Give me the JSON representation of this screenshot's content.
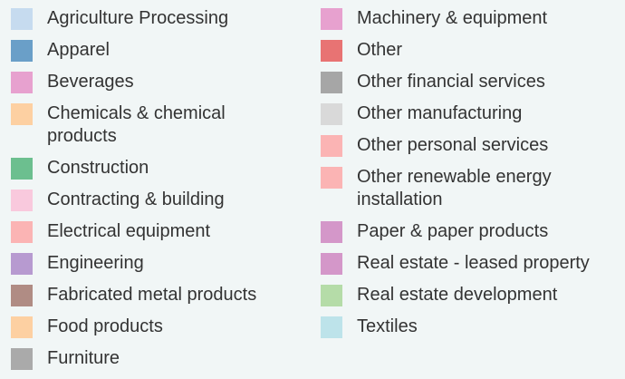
{
  "legend": {
    "columns": [
      [
        {
          "name": "Agriculture Processing",
          "color": "#c6dbef"
        },
        {
          "name": "Apparel",
          "color": "#6a9fc8"
        },
        {
          "name": "Beverages",
          "color": "#e7a1cf"
        },
        {
          "name": "Chemicals & chemical products",
          "color": "#fdd0a2"
        },
        {
          "name": "Construction",
          "color": "#6cbf8f"
        },
        {
          "name": "Contracting & building",
          "color": "#f9c9dd"
        },
        {
          "name": "Electrical equipment",
          "color": "#fbb4b4"
        },
        {
          "name": "Engineering",
          "color": "#b79ad0"
        },
        {
          "name": "Fabricated metal products",
          "color": "#b08c84"
        },
        {
          "name": "Food products",
          "color": "#fdd0a2"
        },
        {
          "name": "Furniture",
          "color": "#aaaaaa"
        }
      ],
      [
        {
          "name": "Machinery & equipment",
          "color": "#e7a1cf"
        },
        {
          "name": "Other",
          "color": "#e87373"
        },
        {
          "name": "Other financial services",
          "color": "#a6a6a6"
        },
        {
          "name": "Other manufacturing",
          "color": "#d9d9d9"
        },
        {
          "name": "Other personal services",
          "color": "#fbb4b4"
        },
        {
          "name": "Other renewable energy installation",
          "color": "#fbb4b4"
        },
        {
          "name": "Paper & paper products",
          "color": "#d497c9"
        },
        {
          "name": "Real estate - leased property",
          "color": "#d497c9"
        },
        {
          "name": "Real estate development",
          "color": "#b5dca8"
        },
        {
          "name": "Textiles",
          "color": "#bde3ea"
        }
      ]
    ]
  }
}
